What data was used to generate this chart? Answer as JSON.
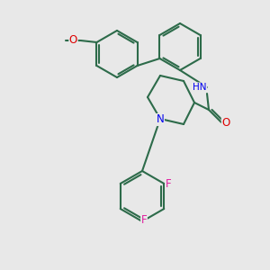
{
  "background_color": "#e8e8e8",
  "bond_color": "#2d6b4a",
  "bond_lw": 1.5,
  "atom_colors": {
    "F": "#e020a0",
    "N": "#0000ee",
    "O": "#dd0000",
    "H": "#888888",
    "C": "#2d6b4a"
  },
  "font_size": 7.5,
  "label_font": "DejaVu Sans"
}
